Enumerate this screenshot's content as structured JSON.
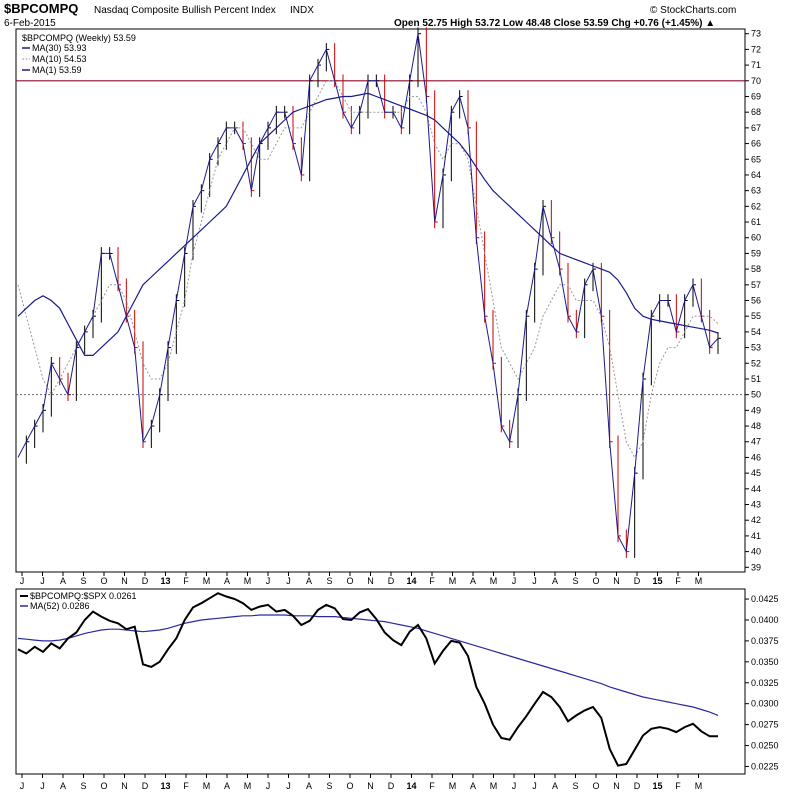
{
  "header": {
    "ticker": "$BPCOMPQ",
    "name": "Nasdaq Composite Bullish Percent Index",
    "exchange": "INDX",
    "date": "6-Feb-2015",
    "quote": "Open 52.75  High 53.72  Low 48.48  Close 53.59  Chg +0.76 (+1.45%) ▲",
    "watermark": "© StockCharts.com"
  },
  "colors": {
    "price": "#000000",
    "down": "#cc0000",
    "ma30": "#1a1a8c",
    "ma10": "#999999",
    "ref": "#8b0a2a",
    "ratio": "#000000",
    "ma52": "#2a2aa0"
  },
  "chart_data": [
    {
      "type": "line",
      "title": "$BPCOMPQ Nasdaq Composite Bullish Percent Index",
      "legend": [
        "$BPCOMPQ (Weekly) 53.59",
        "MA(30) 53.93",
        "MA(10) 54.53",
        "MA(1) 53.59"
      ],
      "x_tick_labels": [
        "J",
        "J",
        "A",
        "S",
        "O",
        "N",
        "D",
        "13",
        "F",
        "M",
        "A",
        "M",
        "J",
        "J",
        "A",
        "S",
        "O",
        "N",
        "D",
        "14",
        "F",
        "M",
        "A",
        "M",
        "J",
        "J",
        "A",
        "S",
        "O",
        "N",
        "D",
        "15",
        "F",
        "M"
      ],
      "y_ticks": [
        39,
        40,
        41,
        42,
        43,
        44,
        45,
        46,
        47,
        48,
        49,
        50,
        51,
        52,
        53,
        54,
        55,
        56,
        57,
        58,
        59,
        60,
        61,
        62,
        63,
        64,
        65,
        66,
        67,
        68,
        69,
        70,
        71,
        72,
        73
      ],
      "ylim": [
        38.7,
        73.3
      ],
      "reference_lines": [
        70,
        50
      ],
      "series": [
        {
          "name": "$BPCOMPQ (Weekly)",
          "values": [
            46,
            47,
            48,
            49,
            52,
            51,
            50,
            53,
            54,
            55,
            59,
            59,
            57,
            55,
            53,
            47,
            48,
            50,
            53,
            56,
            59,
            62,
            63,
            65,
            66,
            67,
            67,
            66,
            63,
            66,
            67,
            68,
            68,
            66,
            64,
            70,
            71,
            72,
            70,
            68,
            67,
            68,
            70,
            70,
            68,
            68,
            67,
            70,
            73,
            69,
            61,
            64,
            68,
            69,
            67,
            60,
            55,
            52,
            48,
            47,
            50,
            55,
            58,
            62,
            60,
            58,
            55,
            54,
            57,
            58,
            55,
            47,
            41,
            40,
            45,
            51,
            55,
            56,
            56,
            54,
            56,
            57,
            55,
            53,
            53.59
          ]
        },
        {
          "name": "MA(30)",
          "values": [
            55,
            55.5,
            56,
            56.3,
            56,
            55.5,
            54.5,
            53.5,
            52.5,
            52.5,
            53,
            53.5,
            54,
            55,
            56,
            57,
            57.5,
            58,
            58.5,
            59,
            59.5,
            60,
            60.5,
            61,
            61.5,
            62,
            63,
            64,
            65,
            66,
            66.5,
            67,
            67.5,
            68,
            68.2,
            68.4,
            68.6,
            68.8,
            68.9,
            69,
            69,
            69.1,
            69.2,
            69,
            68.8,
            68.6,
            68.4,
            68.2,
            68,
            67.8,
            67.5,
            67,
            66.5,
            66,
            65.3,
            64.5,
            63.7,
            63,
            62.5,
            62,
            61.5,
            61,
            60.5,
            60,
            59.5,
            59,
            58.8,
            58.6,
            58.4,
            58.2,
            58,
            57.8,
            57.3,
            56.5,
            55.5,
            55,
            54.8,
            54.7,
            54.6,
            54.5,
            54.4,
            54.3,
            54.2,
            54.1,
            53.93
          ]
        },
        {
          "name": "MA(10)",
          "values": [
            57,
            55,
            53,
            51,
            50,
            51,
            52,
            53,
            54,
            55,
            56,
            57,
            57,
            56,
            54,
            52,
            51,
            51,
            52,
            54,
            56,
            59,
            61,
            63,
            65,
            66,
            67,
            67,
            66,
            65,
            65,
            66,
            67,
            67,
            67,
            68,
            69,
            70,
            70,
            69,
            68,
            68,
            68,
            68,
            68,
            68,
            68,
            69,
            69,
            68,
            66,
            65,
            66,
            66,
            65,
            62,
            59,
            56,
            53,
            52,
            51,
            52,
            53,
            55,
            56,
            57,
            57,
            56,
            56,
            56,
            55,
            53,
            50,
            47,
            46,
            47,
            50,
            52,
            53,
            53,
            54,
            55,
            55,
            55,
            54.53
          ]
        },
        {
          "name": "MA(1)",
          "values": [
            46,
            47,
            48,
            49,
            52,
            51,
            50,
            53,
            54,
            55,
            59,
            59,
            57,
            55,
            53,
            47,
            48,
            50,
            53,
            56,
            59,
            62,
            63,
            65,
            66,
            67,
            67,
            66,
            63,
            66,
            67,
            68,
            68,
            66,
            64,
            70,
            71,
            72,
            70,
            68,
            67,
            68,
            70,
            70,
            68,
            68,
            67,
            70,
            73,
            69,
            61,
            64,
            68,
            69,
            67,
            60,
            55,
            52,
            48,
            47,
            50,
            55,
            58,
            62,
            60,
            58,
            55,
            54,
            57,
            58,
            55,
            47,
            41,
            40,
            45,
            51,
            55,
            56,
            56,
            54,
            56,
            57,
            55,
            53,
            53.59
          ]
        }
      ]
    },
    {
      "type": "line",
      "title": "$BPCOMPQ:$SPX",
      "legend": [
        "$BPCOMPQ:$SPX 0.0261",
        "MA(52) 0.0286"
      ],
      "x_tick_labels": [
        "J",
        "J",
        "A",
        "S",
        "O",
        "N",
        "D",
        "13",
        "F",
        "M",
        "A",
        "M",
        "J",
        "J",
        "A",
        "S",
        "O",
        "N",
        "D",
        "14",
        "F",
        "M",
        "A",
        "M",
        "J",
        "J",
        "A",
        "S",
        "O",
        "N",
        "D",
        "15",
        "F",
        "M"
      ],
      "y_ticks": [
        "0.0225",
        "0.0250",
        "0.0275",
        "0.0300",
        "0.0325",
        "0.0350",
        "0.0375",
        "0.0400",
        "0.0425"
      ],
      "ylim": [
        0.0216,
        0.0437
      ],
      "series": [
        {
          "name": "$BPCOMPQ:$SPX",
          "values": [
            0.0365,
            0.036,
            0.0368,
            0.0362,
            0.0372,
            0.0366,
            0.0378,
            0.0385,
            0.04,
            0.041,
            0.0404,
            0.0399,
            0.0396,
            0.0389,
            0.0392,
            0.0347,
            0.0344,
            0.035,
            0.0365,
            0.0378,
            0.04,
            0.0415,
            0.042,
            0.0426,
            0.0432,
            0.0428,
            0.0425,
            0.042,
            0.0412,
            0.0416,
            0.0418,
            0.041,
            0.0412,
            0.0405,
            0.0394,
            0.0399,
            0.0412,
            0.0418,
            0.0414,
            0.0401,
            0.04,
            0.0409,
            0.0413,
            0.0401,
            0.0385,
            0.0376,
            0.037,
            0.0386,
            0.0394,
            0.0378,
            0.0348,
            0.0363,
            0.0375,
            0.0373,
            0.0357,
            0.032,
            0.03,
            0.0275,
            0.0259,
            0.0257,
            0.0272,
            0.0285,
            0.03,
            0.0314,
            0.0308,
            0.0296,
            0.0279,
            0.0286,
            0.0292,
            0.0296,
            0.0283,
            0.0246,
            0.0226,
            0.0228,
            0.0245,
            0.0262,
            0.027,
            0.0272,
            0.027,
            0.0266,
            0.0272,
            0.0276,
            0.0267,
            0.0261,
            0.0261
          ]
        },
        {
          "name": "MA(52)",
          "values": [
            0.0378,
            0.0377,
            0.0376,
            0.0375,
            0.0375,
            0.0376,
            0.0378,
            0.0381,
            0.0384,
            0.0386,
            0.0388,
            0.0389,
            0.0389,
            0.0388,
            0.0387,
            0.0386,
            0.0387,
            0.0388,
            0.039,
            0.0393,
            0.0396,
            0.0398,
            0.04,
            0.0401,
            0.0402,
            0.0403,
            0.0404,
            0.0405,
            0.0405,
            0.0406,
            0.0406,
            0.0406,
            0.0406,
            0.0405,
            0.0405,
            0.0405,
            0.0404,
            0.0404,
            0.0404,
            0.0403,
            0.0402,
            0.0401,
            0.04,
            0.0399,
            0.0398,
            0.0396,
            0.0394,
            0.0392,
            0.039,
            0.0387,
            0.0384,
            0.0381,
            0.0378,
            0.0375,
            0.0372,
            0.0369,
            0.0366,
            0.0363,
            0.036,
            0.0357,
            0.0354,
            0.0351,
            0.0348,
            0.0345,
            0.0342,
            0.0339,
            0.0336,
            0.0333,
            0.033,
            0.0327,
            0.0324,
            0.032,
            0.0317,
            0.0314,
            0.0311,
            0.0308,
            0.0306,
            0.0304,
            0.0302,
            0.03,
            0.0298,
            0.0296,
            0.0293,
            0.029,
            0.0286
          ]
        }
      ]
    }
  ]
}
